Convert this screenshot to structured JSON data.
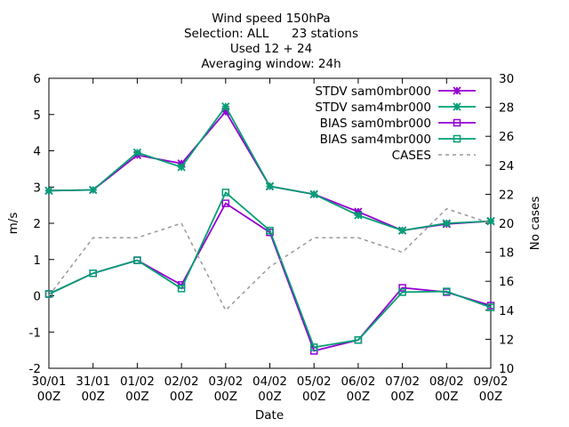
{
  "chart_data": {
    "type": "line",
    "title_lines": [
      "Wind speed 150hPa",
      "Selection: ALL      23 stations",
      "Used 12 + 24",
      "Averaging window: 24h"
    ],
    "xlabel": "Date",
    "ylabel": "m/s",
    "y2label": "No cases",
    "categories": [
      "30/01 00Z",
      "31/01 00Z",
      "01/02 00Z",
      "02/02 00Z",
      "03/02 00Z",
      "04/02 00Z",
      "05/02 00Z",
      "06/02 00Z",
      "07/02 00Z",
      "08/02 00Z",
      "09/02 00Z"
    ],
    "ylim": [
      -2,
      6
    ],
    "y2lim": [
      10,
      30
    ],
    "yticks": [
      -2,
      -1,
      0,
      1,
      2,
      3,
      4,
      5,
      6
    ],
    "y2ticks": [
      10,
      12,
      14,
      16,
      18,
      20,
      22,
      24,
      26,
      28,
      30
    ],
    "legend_position": "top-right",
    "grid": false,
    "series": [
      {
        "name": "STDV sam0mbr000",
        "axis": "y",
        "color": "#9400d3",
        "marker": "star",
        "dash": false,
        "values": [
          2.9,
          2.92,
          3.88,
          3.65,
          5.08,
          3.02,
          2.8,
          2.32,
          1.8,
          1.98,
          2.06
        ]
      },
      {
        "name": "STDV sam4mbr000",
        "axis": "y",
        "color": "#009e73",
        "marker": "star",
        "dash": false,
        "values": [
          2.9,
          2.92,
          3.95,
          3.55,
          5.22,
          3.02,
          2.8,
          2.22,
          1.8,
          2.0,
          2.06
        ]
      },
      {
        "name": "BIAS sam0mbr000",
        "axis": "y",
        "color": "#9400d3",
        "marker": "square",
        "dash": false,
        "values": [
          0.05,
          0.62,
          0.98,
          0.3,
          2.55,
          1.75,
          -1.52,
          -1.22,
          0.22,
          0.1,
          -0.27
        ]
      },
      {
        "name": "BIAS sam4mbr000",
        "axis": "y",
        "color": "#009e73",
        "marker": "square",
        "dash": false,
        "values": [
          0.05,
          0.62,
          0.98,
          0.2,
          2.85,
          1.8,
          -1.42,
          -1.22,
          0.1,
          0.12,
          -0.32
        ]
      },
      {
        "name": "CASES",
        "axis": "y2",
        "color": "#999999",
        "marker": "none",
        "dash": true,
        "values": [
          15,
          19,
          19,
          20,
          14,
          17,
          19,
          19,
          18,
          21,
          20
        ]
      }
    ]
  }
}
